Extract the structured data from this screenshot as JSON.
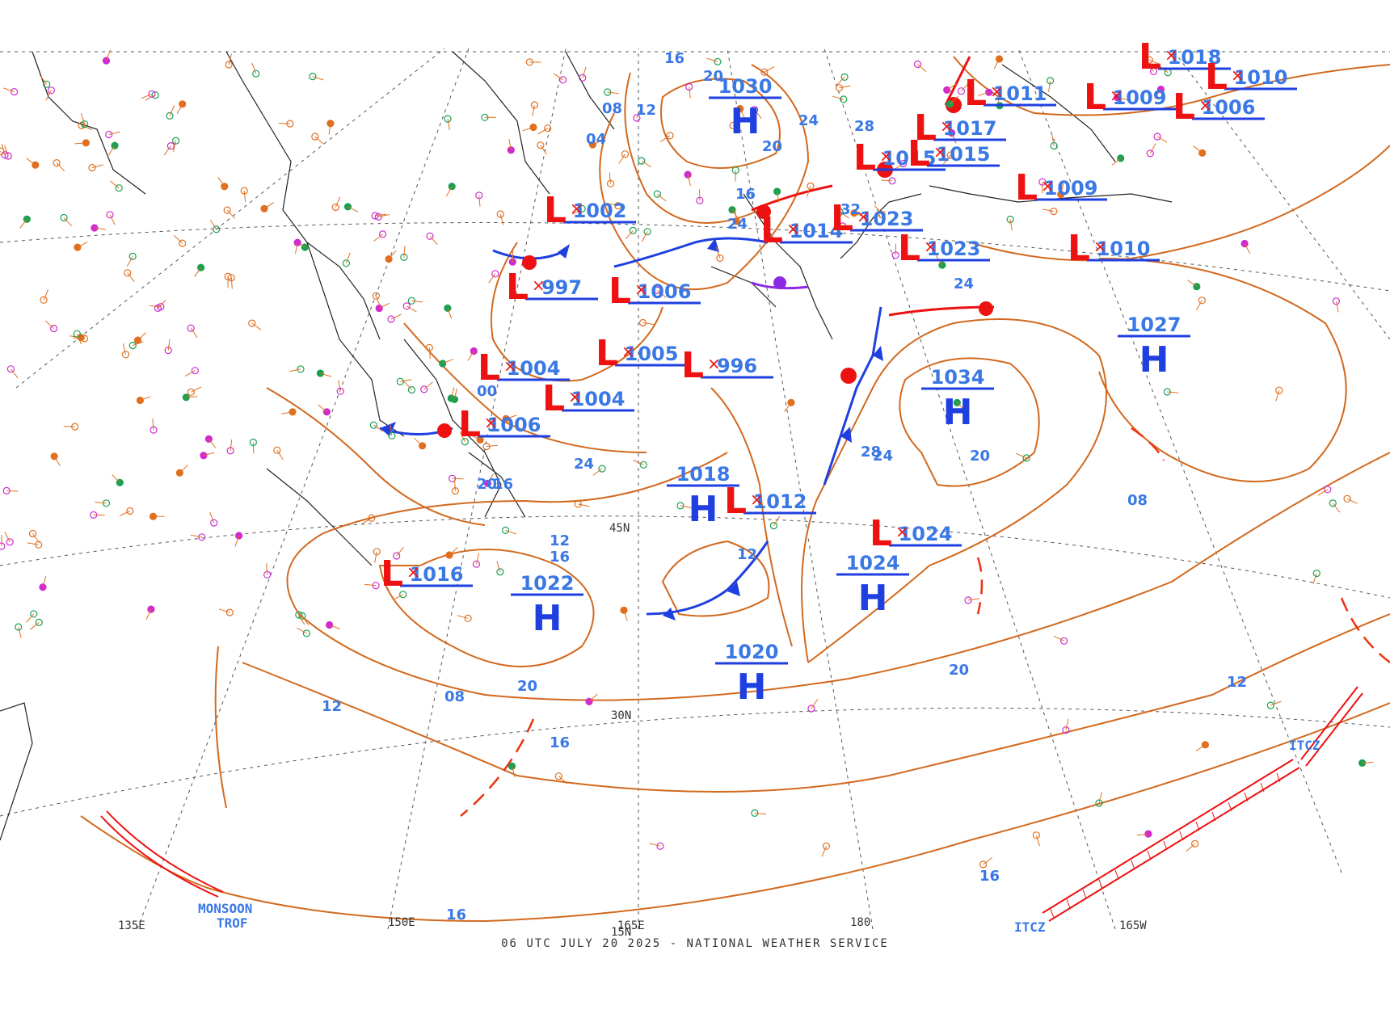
{
  "footer": "06 UTC JULY 20 2025 - NATIONAL WEATHER SERVICE",
  "colors": {
    "isobar": "#d2691e",
    "isobar_label": "#3a78e6",
    "high": "#1f3fe0",
    "low": "#ee1111",
    "grid": "#444444",
    "coast": "#222222",
    "station_orange": "#e07020",
    "station_green": "#1aa050",
    "station_magenta": "#d02ad0",
    "station_blue": "#2040e0",
    "trough": "#ee1111"
  },
  "grid_labels": {
    "lat_45": "45N",
    "lat_30": "30N",
    "lat_15": "15N",
    "lon_135e": "135E",
    "lon_150e": "150E",
    "lon_165e": "165E",
    "lon_180": "180",
    "lon_165w": "165W"
  },
  "pressure_centers": [
    {
      "type": "H",
      "value": "1030"
    },
    {
      "type": "H",
      "value": "1034"
    },
    {
      "type": "H",
      "value": "1027"
    },
    {
      "type": "H",
      "value": "1018"
    },
    {
      "type": "H",
      "value": "1022"
    },
    {
      "type": "H",
      "value": "1020"
    },
    {
      "type": "H",
      "value": "1024"
    },
    {
      "type": "L",
      "value": "1024"
    },
    {
      "type": "L",
      "value": "1002"
    },
    {
      "type": "L",
      "value": "997"
    },
    {
      "type": "L",
      "value": "1006"
    },
    {
      "type": "L",
      "value": "1004"
    },
    {
      "type": "L",
      "value": "1004"
    },
    {
      "type": "L",
      "value": "1005"
    },
    {
      "type": "L",
      "value": "1006"
    },
    {
      "type": "L",
      "value": "996"
    },
    {
      "type": "L",
      "value": "1012"
    },
    {
      "type": "L",
      "value": "1016"
    },
    {
      "type": "L",
      "value": "1014"
    },
    {
      "type": "L",
      "value": "1023"
    },
    {
      "type": "L",
      "value": "1023"
    },
    {
      "type": "L",
      "value": "1015"
    },
    {
      "type": "L",
      "value": "1015"
    },
    {
      "type": "L",
      "value": "1017"
    },
    {
      "type": "L",
      "value": "1011"
    },
    {
      "type": "L",
      "value": "1009"
    },
    {
      "type": "L",
      "value": "1010"
    },
    {
      "type": "L",
      "value": "1006"
    },
    {
      "type": "L",
      "value": "1018"
    },
    {
      "type": "L",
      "value": "1009"
    },
    {
      "type": "L",
      "value": "1010"
    }
  ],
  "isobar_labels": [
    "16",
    "20",
    "24",
    "28",
    "32",
    "20",
    "24",
    "16",
    "12",
    "08",
    "04",
    "00",
    "12",
    "16",
    "20",
    "24",
    "28",
    "24",
    "20",
    "16",
    "12",
    "08",
    "16",
    "12",
    "16",
    "20",
    "24",
    "20",
    "16",
    "12",
    "08"
  ],
  "feature_labels": {
    "monsoon": "MONSOON TROF",
    "itcz_1": "ITCZ",
    "itcz_2": "ITCZ"
  }
}
